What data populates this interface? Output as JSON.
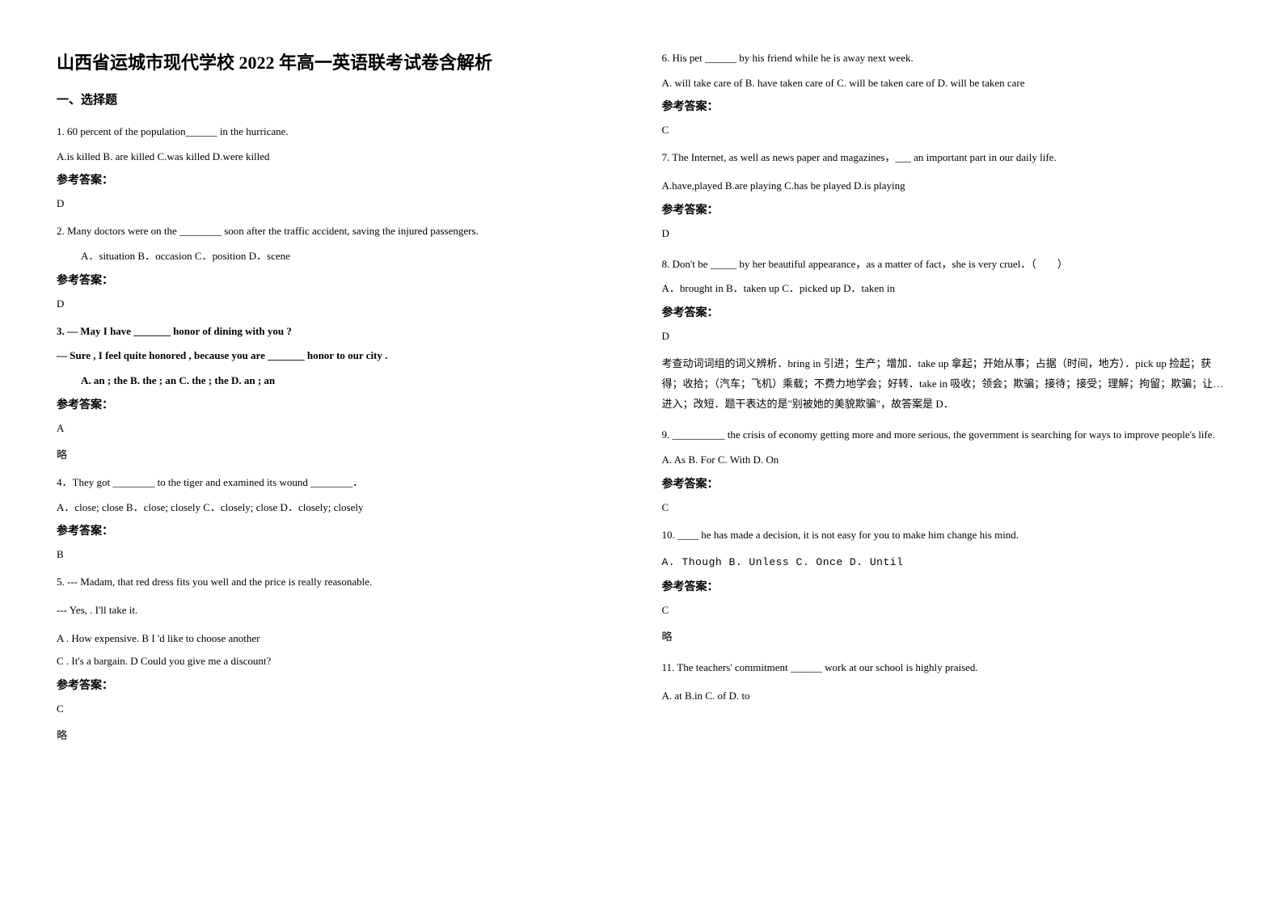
{
  "title": "山西省运城市现代学校 2022 年高一英语联考试卷含解析",
  "section1": "一、选择题",
  "q1": {
    "text": "1. 60 percent of the population______ in the hurricane.",
    "opts": "A.is killed    B. are killed    C.was killed  D.were killed"
  },
  "answerLabel": "参考答案：",
  "a1": "D",
  "q2": {
    "text": "2. Many doctors were on the ________ soon after the traffic accident, saving the injured passengers.",
    "opts": "A．situation             B．occasion     C．position          D．scene"
  },
  "a2": "D",
  "q3": {
    "line1": "3. — May I have _______ honor of dining with you ?",
    "line2": "    — Sure , I feel quite honored , because you are _______ honor to our city .",
    "opts": "A. an ; the        B. the ; an            C. the ; the           D. an ; an"
  },
  "a3": "A",
  "omit": "略",
  "q4": {
    "text": " 4．They got ________ to the tiger and examined its wound ________．",
    "opts": " A．close; close           B．close; closely               C．closely; close     D．closely; closely"
  },
  "a4": "B",
  "q5": {
    "text": "5. --- Madam, that red dress fits you well and the price is really reasonable.",
    "line2": "   --- Yes,               . I'll take it.",
    "optsA": "  A . How expensive.          B I 'd like to choose another",
    "optsB": "  C . It's a bargain.              D Could you give me a discount?"
  },
  "a5": "C",
  "q6": {
    "text": "6. His pet ______ by his friend while he is away next week.",
    "opts": "      A. will take care of  B. have taken care of  C. will be taken care of   D. will be taken care"
  },
  "a6": "C",
  "q7": {
    "text": "7. The Internet, as well as news paper and magazines，___ an important part in our daily life.",
    "opts": "A.have,played       B.are playing       C.has be played   D.is playing"
  },
  "a7": "D",
  "q8": {
    "text": "8. Don't be _____ by her beautiful appearance，as a matter of fact，she is very cruel．（　　）",
    "opts": "A．brought in   B．taken up    C．picked up   D．taken in"
  },
  "a8": "D",
  "exp8": "考查动词词组的词义辨析．bring in 引进；生产；增加．take up 拿起；开始从事；占据（时间，地方）．pick up 捡起；获得；收拾；（汽车；飞机）乘载；不费力地学会；好转．take in 吸收；领会；欺骗；接待；接受；理解；拘留；欺骗；让…进入；改短．题干表达的是\"别被她的美貌欺骗\"，故答案是 D．",
  "q9": {
    "text": "9. __________ the crisis of economy getting more and more serious, the government is searching for ways to improve people's life.",
    "opts": "        A. As     B. For     C. With     D. On"
  },
  "a9": "C",
  "q10": {
    "text": "10.  ____ he has made a decision, it is not easy for you to make him change his mind.",
    "opts": "A. Though          B. Unless           C. Once               D. Until"
  },
  "a10": "C",
  "q11": {
    "text": "11. The teachers' commitment ______ work at our school is highly praised.",
    "opts": " A. at   B.in   C. of   D. to"
  }
}
